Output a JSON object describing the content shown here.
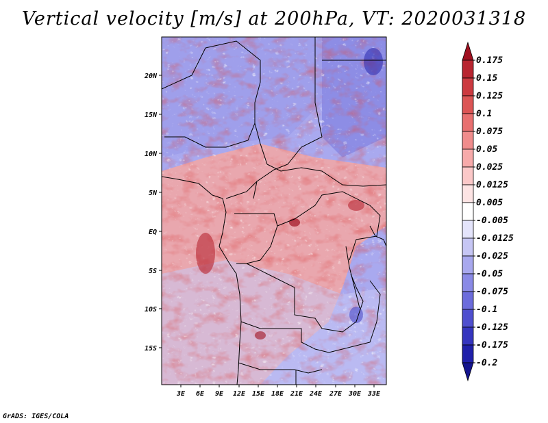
{
  "title": "Vertical velocity [m/s] at 200hPa, VT: 2020031318",
  "credit": "GrADS: IGES/COLA",
  "map": {
    "lon_labels": [
      "3E",
      "6E",
      "9E",
      "12E",
      "15E",
      "18E",
      "21E",
      "24E",
      "27E",
      "30E",
      "33E"
    ],
    "lat_labels": [
      "20N",
      "15N",
      "10N",
      "5N",
      "EQ",
      "5S",
      "10S",
      "15S"
    ]
  },
  "colorbar": {
    "labels": [
      "0.175",
      "0.15",
      "0.125",
      "0.1",
      "0.075",
      "0.05",
      "0.025",
      "0.0125",
      "0.005",
      "-0.005",
      "-0.0125",
      "-0.025",
      "-0.05",
      "-0.075",
      "-0.1",
      "-0.125",
      "-0.175",
      "-0.2"
    ],
    "colors": [
      "#a01020",
      "#b82530",
      "#cc3a40",
      "#dc5555",
      "#e87070",
      "#f08c8c",
      "#f7aaaa",
      "#fbc8c8",
      "#fde4e4",
      "#ffffff",
      "#e4e4fb",
      "#c6c6f4",
      "#a8a8ee",
      "#8a8ae6",
      "#6c6cdc",
      "#4f4fcf",
      "#3535bf",
      "#2020aa",
      "#14148e"
    ]
  },
  "field_colors": {
    "positive": "#e46a6a",
    "negative": "#6a6ae0"
  }
}
